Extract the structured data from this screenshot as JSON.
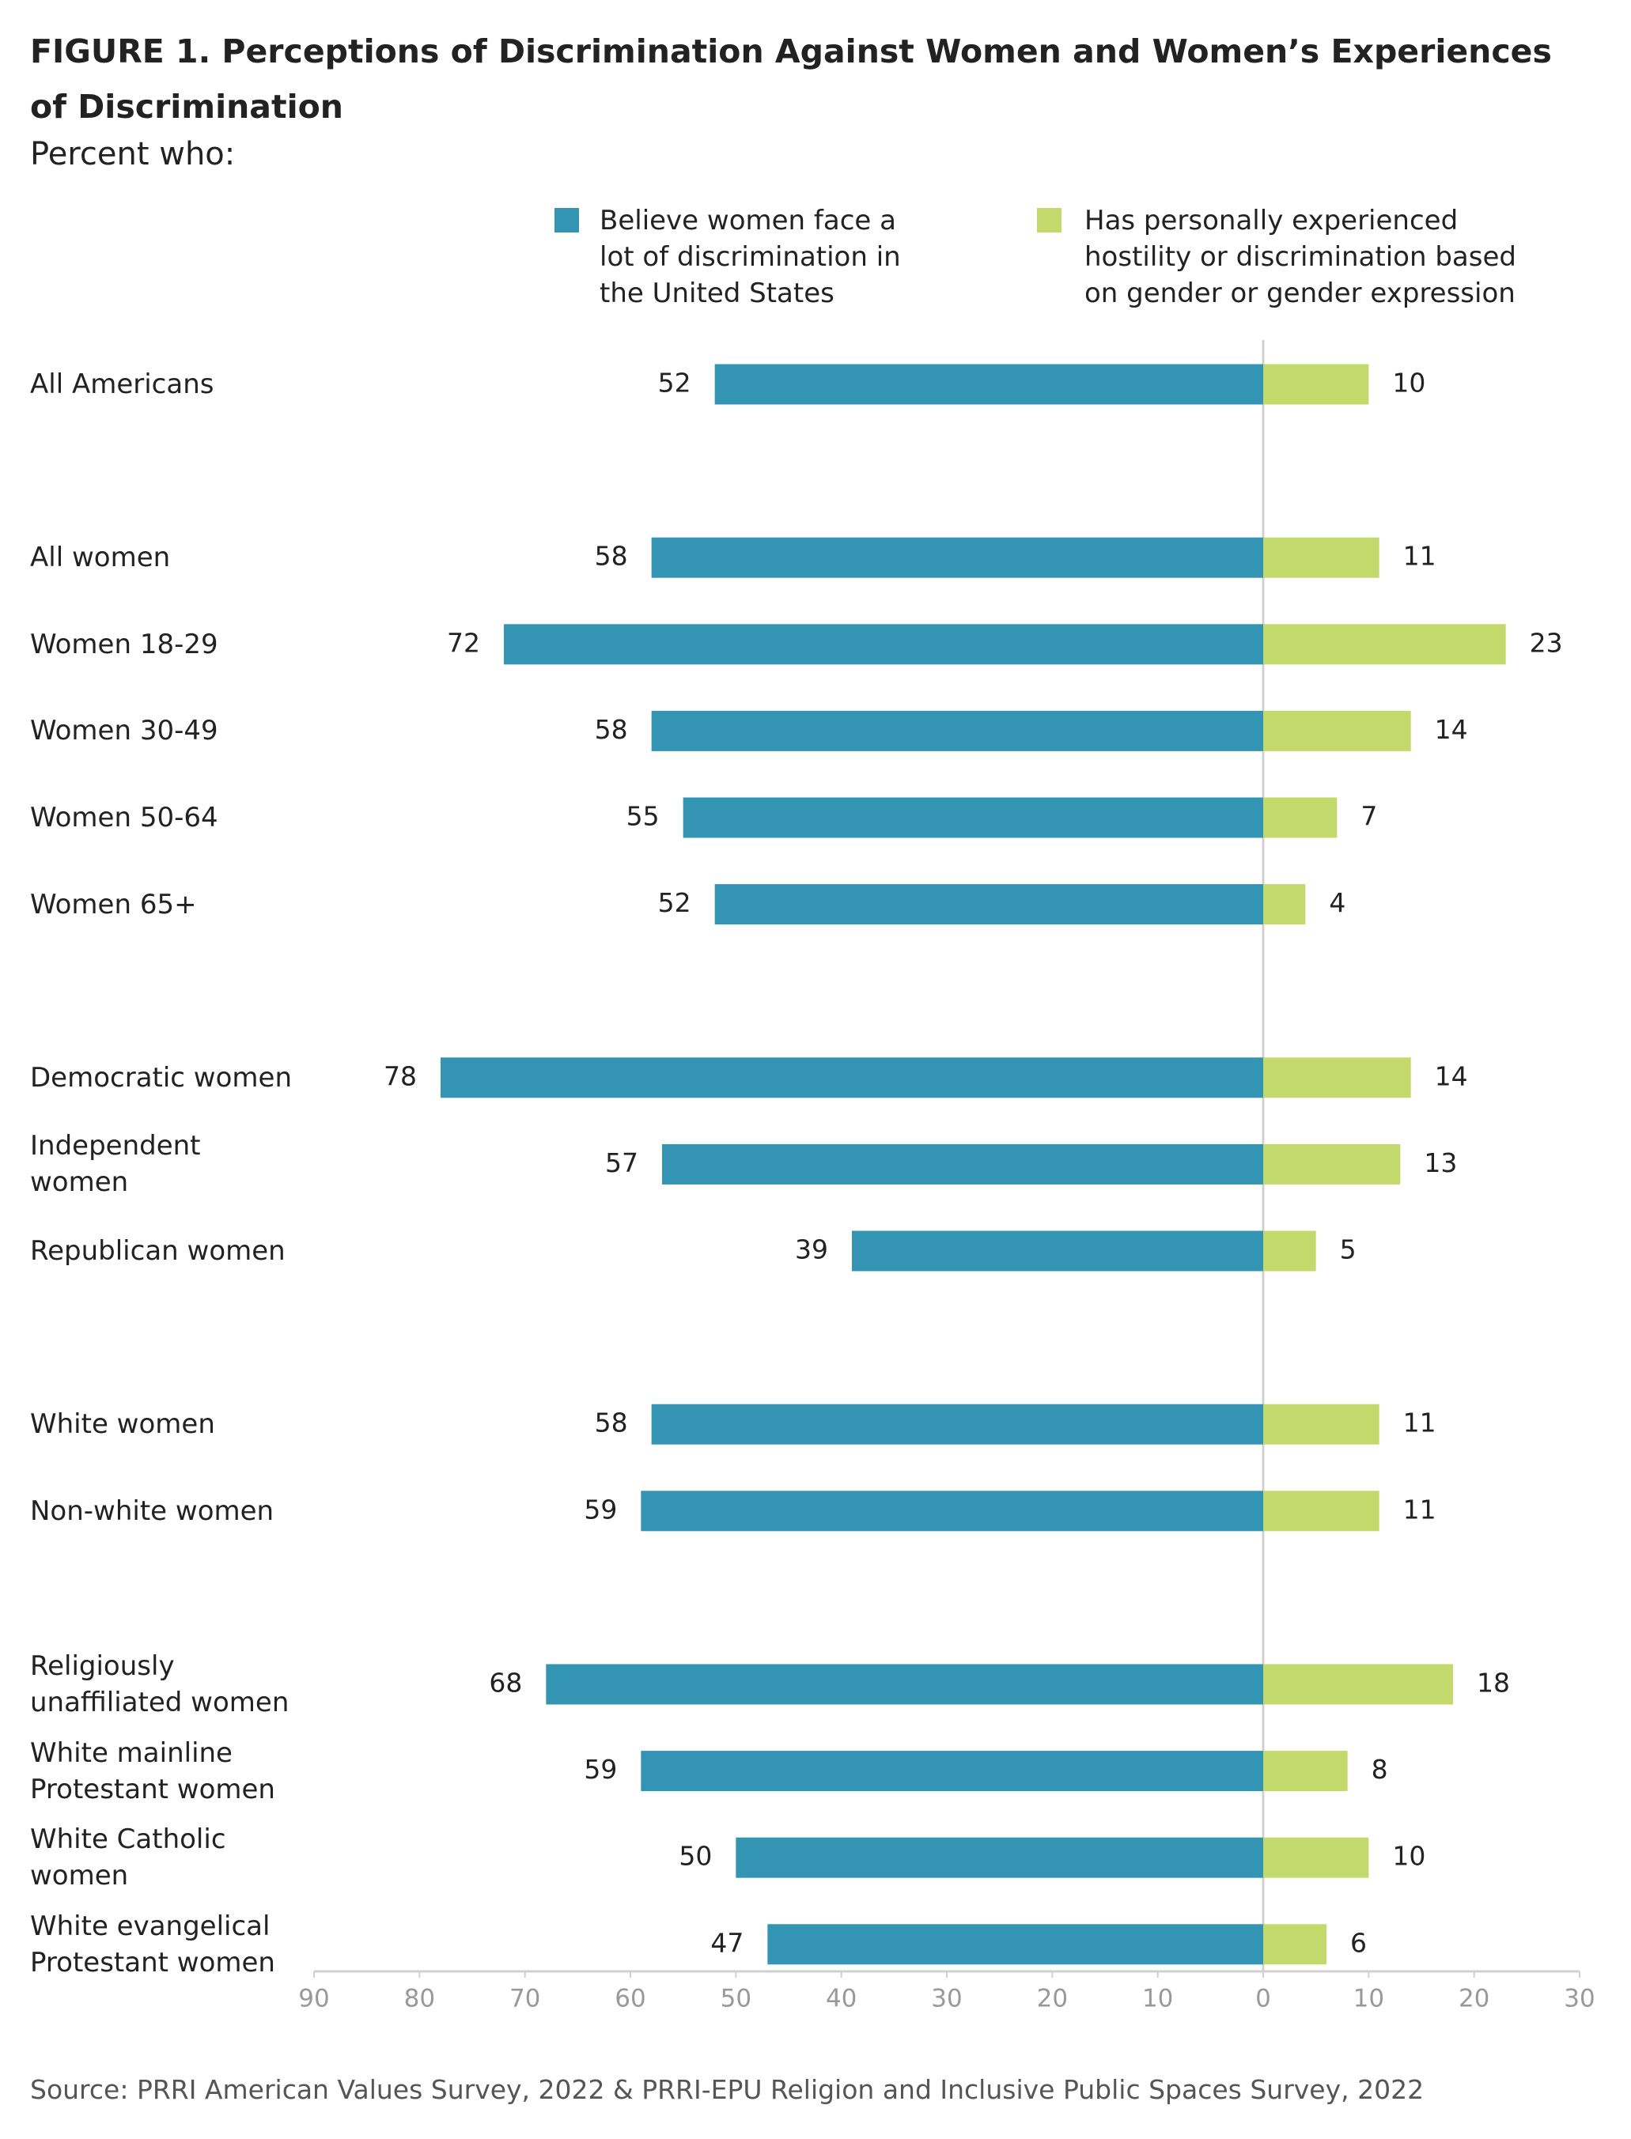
{
  "chart_data": {
    "type": "bar",
    "orientation": "horizontal",
    "title": "FIGURE 1.  Perceptions of Discrimination Against Women and Women’s Experiences\nof Discrimination",
    "subtitle": "Percent who:",
    "categories": [
      "All Americans",
      null,
      "All women",
      "Women 18-29",
      "Women 30-49",
      "Women 50-64",
      "Women 65+",
      null,
      "Democratic women",
      "Independent\nwomen",
      "Republican women",
      null,
      "White women",
      "Non-white women",
      null,
      "Religiously\nunaffiliated women",
      "White mainline\nProtestant women",
      "White Catholic\nwomen",
      "White evangelical\nProtestant women"
    ],
    "series": [
      {
        "name": "Believe women face a\nlot of discrimination in\nthe United States",
        "color": "#3394b4",
        "side": "left",
        "values": [
          52,
          null,
          58,
          72,
          58,
          55,
          52,
          null,
          78,
          57,
          39,
          null,
          58,
          59,
          null,
          68,
          59,
          50,
          47
        ]
      },
      {
        "name": "Has personally experienced\nhostility or discrimination based\non gender or gender expression",
        "color": "#c3d96b",
        "side": "right",
        "values": [
          10,
          null,
          11,
          23,
          14,
          7,
          4,
          null,
          14,
          13,
          5,
          null,
          11,
          11,
          null,
          18,
          8,
          10,
          6
        ]
      }
    ],
    "xlim": [
      -90,
      30
    ],
    "xticks": [
      {
        "value": -90,
        "label": "90"
      },
      {
        "value": -80,
        "label": "80"
      },
      {
        "value": -70,
        "label": "70"
      },
      {
        "value": -60,
        "label": "60"
      },
      {
        "value": -50,
        "label": "50"
      },
      {
        "value": -40,
        "label": "40"
      },
      {
        "value": -30,
        "label": "30"
      },
      {
        "value": -20,
        "label": "20"
      },
      {
        "value": -10,
        "label": "10"
      },
      0,
      10,
      20,
      30
    ],
    "source": "Source: PRRI American Values Survey, 2022 & PRRI-EPU Religion and Inclusive Public Spaces Survey, 2022"
  }
}
